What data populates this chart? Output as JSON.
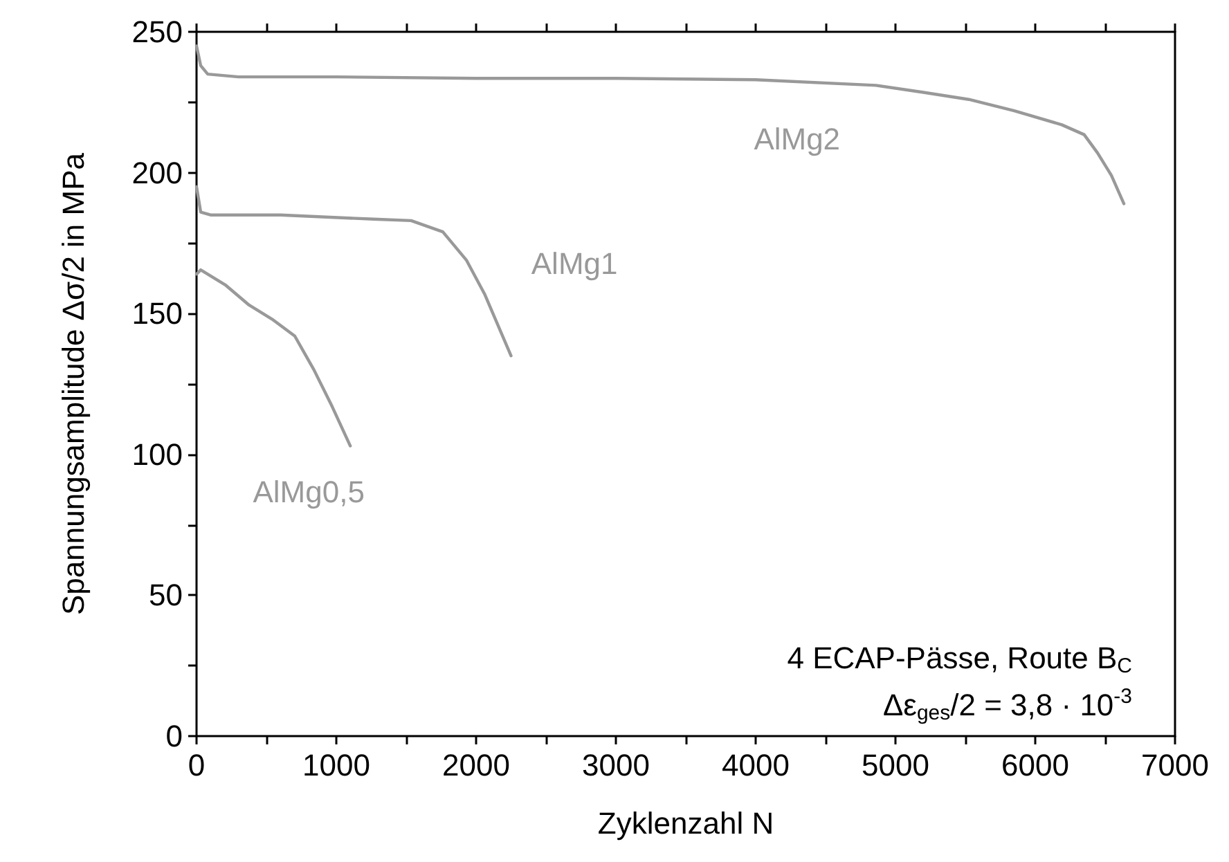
{
  "chart_data": {
    "type": "line",
    "xlabel": "Zyklenzahl N",
    "ylabel": "Spannungsamplitude Δσ/2 in MPa",
    "xlim": [
      0,
      7000
    ],
    "ylim": [
      0,
      250
    ],
    "xticks": [
      0,
      {
        "value": 500,
        "label": null
      },
      1000,
      {
        "value": 1500,
        "label": null
      },
      2000,
      {
        "value": 2500,
        "label": null
      },
      3000,
      {
        "value": 3500,
        "label": null
      },
      4000,
      {
        "value": 4500,
        "label": null
      },
      5000,
      {
        "value": 5500,
        "label": null
      },
      6000,
      {
        "value": 6500,
        "label": null
      },
      7000
    ],
    "yticks": [
      0,
      {
        "value": 25,
        "label": null
      },
      50,
      {
        "value": 75,
        "label": null
      },
      100,
      {
        "value": 125,
        "label": null
      },
      150,
      {
        "value": 175,
        "label": null
      },
      200,
      {
        "value": 225,
        "label": null
      },
      250
    ],
    "grid": false,
    "marker": "none",
    "line_style": "solid",
    "series": [
      {
        "name": "AlMg2",
        "color": "#999999",
        "x": [
          0,
          30,
          80,
          300,
          1000,
          2000,
          3000,
          4000,
          4860,
          5200,
          5525,
          5850,
          6190,
          6350,
          6446,
          6545,
          6634
        ],
        "values": [
          245,
          238,
          235,
          234,
          234,
          233.5,
          233.5,
          233,
          231,
          228.5,
          226,
          222,
          217,
          213.5,
          207,
          199,
          189
        ]
      },
      {
        "name": "AlMg1",
        "color": "#999999",
        "x": [
          0,
          30,
          100,
          600,
          1267,
          1535,
          1762,
          1930,
          2060,
          2250
        ],
        "values": [
          195,
          186,
          185,
          185,
          183.5,
          183,
          179,
          169,
          157,
          135
        ]
      },
      {
        "name": "AlMg0,5",
        "color": "#999999",
        "x": [
          0,
          30,
          210,
          376,
          540,
          703,
          840,
          970,
          1100
        ],
        "values": [
          164,
          165.5,
          160,
          153,
          148,
          142,
          130,
          117,
          103
        ]
      }
    ],
    "annotations": [
      "4 ECAP-Pässe, Route B$_{C}$",
      "Δε$_{ges}$/2 = 3,8 · 10$^{-3}$"
    ]
  }
}
